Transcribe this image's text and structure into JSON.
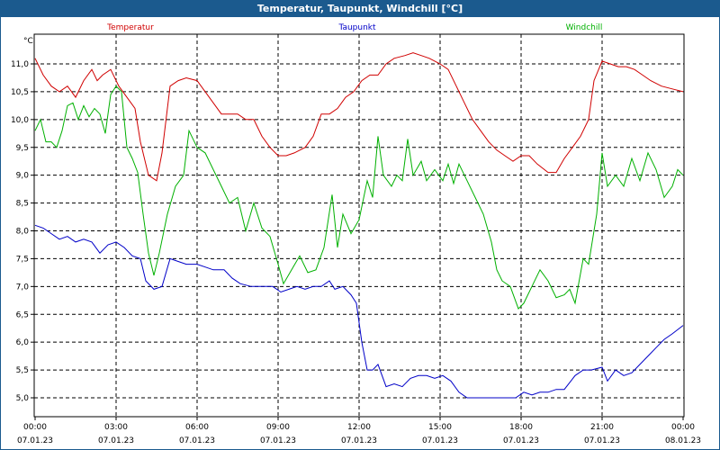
{
  "window": {
    "title": "Temperatur, Taupunkt, Windchill [°C]"
  },
  "chart_data": {
    "type": "line",
    "title": "Temperatur, Taupunkt, Windchill [°C]",
    "ylabel": "°C",
    "xlabel": "",
    "ylim": [
      4.8,
      11.6
    ],
    "xlim": [
      0,
      24
    ],
    "grid": true,
    "legend": "top",
    "y_ticks": [
      "5,0",
      "5,5",
      "6,0",
      "6,5",
      "7,0",
      "7,5",
      "8,0",
      "8,5",
      "9,0",
      "9,5",
      "10,0",
      "10,5",
      "11,0"
    ],
    "x_ticks": [
      {
        "time": "00:00",
        "date": "07.01.23"
      },
      {
        "time": "03:00",
        "date": "07.01.23"
      },
      {
        "time": "06:00",
        "date": "07.01.23"
      },
      {
        "time": "09:00",
        "date": "07.01.23"
      },
      {
        "time": "12:00",
        "date": "07.01.23"
      },
      {
        "time": "15:00",
        "date": "07.01.23"
      },
      {
        "time": "18:00",
        "date": "07.01.23"
      },
      {
        "time": "21:00",
        "date": "07.01.23"
      },
      {
        "time": "00:00",
        "date": "08.01.23"
      }
    ],
    "series": [
      {
        "name": "Temperatur",
        "color": "#d00000",
        "points": [
          [
            0,
            11.1
          ],
          [
            0.3,
            10.8
          ],
          [
            0.6,
            10.6
          ],
          [
            0.9,
            10.5
          ],
          [
            1.2,
            10.6
          ],
          [
            1.5,
            10.4
          ],
          [
            1.8,
            10.7
          ],
          [
            2.1,
            10.9
          ],
          [
            2.3,
            10.7
          ],
          [
            2.5,
            10.8
          ],
          [
            2.8,
            10.9
          ],
          [
            3.1,
            10.6
          ],
          [
            3.4,
            10.4
          ],
          [
            3.7,
            10.2
          ],
          [
            3.9,
            9.6
          ],
          [
            4.2,
            9.0
          ],
          [
            4.5,
            8.9
          ],
          [
            4.7,
            9.4
          ],
          [
            5.0,
            10.6
          ],
          [
            5.3,
            10.7
          ],
          [
            5.6,
            10.75
          ],
          [
            6.0,
            10.7
          ],
          [
            6.3,
            10.5
          ],
          [
            6.6,
            10.3
          ],
          [
            6.9,
            10.1
          ],
          [
            7.2,
            10.1
          ],
          [
            7.5,
            10.1
          ],
          [
            7.8,
            10.0
          ],
          [
            8.1,
            10.0
          ],
          [
            8.4,
            9.7
          ],
          [
            8.7,
            9.5
          ],
          [
            9.0,
            9.35
          ],
          [
            9.3,
            9.35
          ],
          [
            9.6,
            9.4
          ],
          [
            10.0,
            9.5
          ],
          [
            10.3,
            9.7
          ],
          [
            10.6,
            10.1
          ],
          [
            10.9,
            10.1
          ],
          [
            11.2,
            10.2
          ],
          [
            11.5,
            10.4
          ],
          [
            11.8,
            10.5
          ],
          [
            12.1,
            10.7
          ],
          [
            12.4,
            10.8
          ],
          [
            12.7,
            10.8
          ],
          [
            13.0,
            11.0
          ],
          [
            13.3,
            11.1
          ],
          [
            13.7,
            11.15
          ],
          [
            14.0,
            11.2
          ],
          [
            14.3,
            11.15
          ],
          [
            14.6,
            11.1
          ],
          [
            15.0,
            11.0
          ],
          [
            15.3,
            10.9
          ],
          [
            15.6,
            10.6
          ],
          [
            15.9,
            10.3
          ],
          [
            16.2,
            10.0
          ],
          [
            16.5,
            9.8
          ],
          [
            16.8,
            9.6
          ],
          [
            17.1,
            9.45
          ],
          [
            17.4,
            9.35
          ],
          [
            17.7,
            9.25
          ],
          [
            18.0,
            9.35
          ],
          [
            18.3,
            9.35
          ],
          [
            18.6,
            9.2
          ],
          [
            19.0,
            9.05
          ],
          [
            19.3,
            9.05
          ],
          [
            19.6,
            9.3
          ],
          [
            19.9,
            9.5
          ],
          [
            20.2,
            9.7
          ],
          [
            20.5,
            10.0
          ],
          [
            20.7,
            10.7
          ],
          [
            21.0,
            11.05
          ],
          [
            21.3,
            11.0
          ],
          [
            21.6,
            10.95
          ],
          [
            21.9,
            10.95
          ],
          [
            22.2,
            10.9
          ],
          [
            22.5,
            10.8
          ],
          [
            22.8,
            10.7
          ],
          [
            23.2,
            10.6
          ],
          [
            23.6,
            10.55
          ],
          [
            24.0,
            10.5
          ]
        ]
      },
      {
        "name": "Taupunkt",
        "color": "#0000c8",
        "points": [
          [
            0,
            8.1
          ],
          [
            0.3,
            8.05
          ],
          [
            0.6,
            7.95
          ],
          [
            0.9,
            7.85
          ],
          [
            1.2,
            7.9
          ],
          [
            1.5,
            7.8
          ],
          [
            1.8,
            7.85
          ],
          [
            2.1,
            7.8
          ],
          [
            2.4,
            7.6
          ],
          [
            2.7,
            7.75
          ],
          [
            3.0,
            7.8
          ],
          [
            3.3,
            7.7
          ],
          [
            3.6,
            7.55
          ],
          [
            3.9,
            7.5
          ],
          [
            4.1,
            7.1
          ],
          [
            4.4,
            6.95
          ],
          [
            4.7,
            7.0
          ],
          [
            5.0,
            7.5
          ],
          [
            5.3,
            7.45
          ],
          [
            5.6,
            7.4
          ],
          [
            6.0,
            7.4
          ],
          [
            6.3,
            7.35
          ],
          [
            6.6,
            7.3
          ],
          [
            7.0,
            7.3
          ],
          [
            7.3,
            7.15
          ],
          [
            7.6,
            7.05
          ],
          [
            8.0,
            7.0
          ],
          [
            8.4,
            7.0
          ],
          [
            8.8,
            7.0
          ],
          [
            9.1,
            6.9
          ],
          [
            9.4,
            6.95
          ],
          [
            9.7,
            7.0
          ],
          [
            10.0,
            6.95
          ],
          [
            10.3,
            7.0
          ],
          [
            10.6,
            7.0
          ],
          [
            10.9,
            7.1
          ],
          [
            11.1,
            6.95
          ],
          [
            11.4,
            7.0
          ],
          [
            11.7,
            6.85
          ],
          [
            11.9,
            6.7
          ],
          [
            12.1,
            6.0
          ],
          [
            12.3,
            5.5
          ],
          [
            12.5,
            5.5
          ],
          [
            12.7,
            5.6
          ],
          [
            13.0,
            5.2
          ],
          [
            13.3,
            5.25
          ],
          [
            13.6,
            5.2
          ],
          [
            13.9,
            5.35
          ],
          [
            14.2,
            5.4
          ],
          [
            14.5,
            5.4
          ],
          [
            14.8,
            5.35
          ],
          [
            15.1,
            5.4
          ],
          [
            15.4,
            5.3
          ],
          [
            15.7,
            5.1
          ],
          [
            16.0,
            5.0
          ],
          [
            16.5,
            5.0
          ],
          [
            17.0,
            5.0
          ],
          [
            17.5,
            5.0
          ],
          [
            17.8,
            5.0
          ],
          [
            18.1,
            5.1
          ],
          [
            18.4,
            5.05
          ],
          [
            18.7,
            5.1
          ],
          [
            19.0,
            5.1
          ],
          [
            19.3,
            5.15
          ],
          [
            19.6,
            5.15
          ],
          [
            20.0,
            5.4
          ],
          [
            20.3,
            5.5
          ],
          [
            20.6,
            5.5
          ],
          [
            21.0,
            5.55
          ],
          [
            21.2,
            5.3
          ],
          [
            21.5,
            5.5
          ],
          [
            21.8,
            5.4
          ],
          [
            22.1,
            5.45
          ],
          [
            22.4,
            5.6
          ],
          [
            22.7,
            5.75
          ],
          [
            23.0,
            5.9
          ],
          [
            23.3,
            6.05
          ],
          [
            23.6,
            6.15
          ],
          [
            24.0,
            6.3
          ]
        ]
      },
      {
        "name": "Windchill",
        "color": "#00b000",
        "points": [
          [
            0,
            9.8
          ],
          [
            0.2,
            10.0
          ],
          [
            0.4,
            9.6
          ],
          [
            0.6,
            9.6
          ],
          [
            0.8,
            9.5
          ],
          [
            1.0,
            9.8
          ],
          [
            1.2,
            10.25
          ],
          [
            1.4,
            10.3
          ],
          [
            1.6,
            10.0
          ],
          [
            1.8,
            10.25
          ],
          [
            2.0,
            10.05
          ],
          [
            2.2,
            10.2
          ],
          [
            2.4,
            10.1
          ],
          [
            2.6,
            9.75
          ],
          [
            2.8,
            10.45
          ],
          [
            3.0,
            10.6
          ],
          [
            3.2,
            10.5
          ],
          [
            3.4,
            9.5
          ],
          [
            3.6,
            9.3
          ],
          [
            3.8,
            9.05
          ],
          [
            4.0,
            8.3
          ],
          [
            4.2,
            7.6
          ],
          [
            4.4,
            7.2
          ],
          [
            4.6,
            7.6
          ],
          [
            4.9,
            8.3
          ],
          [
            5.2,
            8.8
          ],
          [
            5.5,
            9.0
          ],
          [
            5.7,
            9.8
          ],
          [
            6.0,
            9.5
          ],
          [
            6.3,
            9.4
          ],
          [
            6.6,
            9.1
          ],
          [
            6.9,
            8.8
          ],
          [
            7.2,
            8.5
          ],
          [
            7.5,
            8.6
          ],
          [
            7.8,
            8.0
          ],
          [
            8.1,
            8.5
          ],
          [
            8.4,
            8.05
          ],
          [
            8.7,
            7.9
          ],
          [
            9.0,
            7.4
          ],
          [
            9.2,
            7.05
          ],
          [
            9.5,
            7.3
          ],
          [
            9.8,
            7.55
          ],
          [
            10.1,
            7.25
          ],
          [
            10.4,
            7.3
          ],
          [
            10.7,
            7.7
          ],
          [
            11.0,
            8.65
          ],
          [
            11.2,
            7.7
          ],
          [
            11.4,
            8.3
          ],
          [
            11.7,
            7.95
          ],
          [
            12.0,
            8.2
          ],
          [
            12.3,
            8.9
          ],
          [
            12.5,
            8.6
          ],
          [
            12.7,
            9.7
          ],
          [
            12.9,
            9.0
          ],
          [
            13.2,
            8.8
          ],
          [
            13.4,
            9.0
          ],
          [
            13.6,
            8.9
          ],
          [
            13.8,
            9.65
          ],
          [
            14.0,
            9.0
          ],
          [
            14.3,
            9.25
          ],
          [
            14.5,
            8.9
          ],
          [
            14.8,
            9.1
          ],
          [
            15.1,
            8.9
          ],
          [
            15.3,
            9.2
          ],
          [
            15.5,
            8.85
          ],
          [
            15.7,
            9.2
          ],
          [
            16.0,
            8.9
          ],
          [
            16.3,
            8.6
          ],
          [
            16.6,
            8.3
          ],
          [
            16.9,
            7.8
          ],
          [
            17.1,
            7.3
          ],
          [
            17.3,
            7.1
          ],
          [
            17.6,
            7.0
          ],
          [
            17.9,
            6.6
          ],
          [
            18.1,
            6.7
          ],
          [
            18.4,
            7.0
          ],
          [
            18.7,
            7.3
          ],
          [
            19.0,
            7.1
          ],
          [
            19.3,
            6.8
          ],
          [
            19.6,
            6.85
          ],
          [
            19.8,
            6.95
          ],
          [
            20.0,
            6.7
          ],
          [
            20.3,
            7.5
          ],
          [
            20.5,
            7.4
          ],
          [
            20.8,
            8.3
          ],
          [
            21.0,
            9.4
          ],
          [
            21.2,
            8.8
          ],
          [
            21.5,
            9.0
          ],
          [
            21.8,
            8.8
          ],
          [
            22.1,
            9.3
          ],
          [
            22.4,
            8.9
          ],
          [
            22.7,
            9.4
          ],
          [
            23.0,
            9.1
          ],
          [
            23.3,
            8.6
          ],
          [
            23.6,
            8.8
          ],
          [
            23.8,
            9.1
          ],
          [
            24.0,
            9.0
          ]
        ]
      }
    ]
  }
}
